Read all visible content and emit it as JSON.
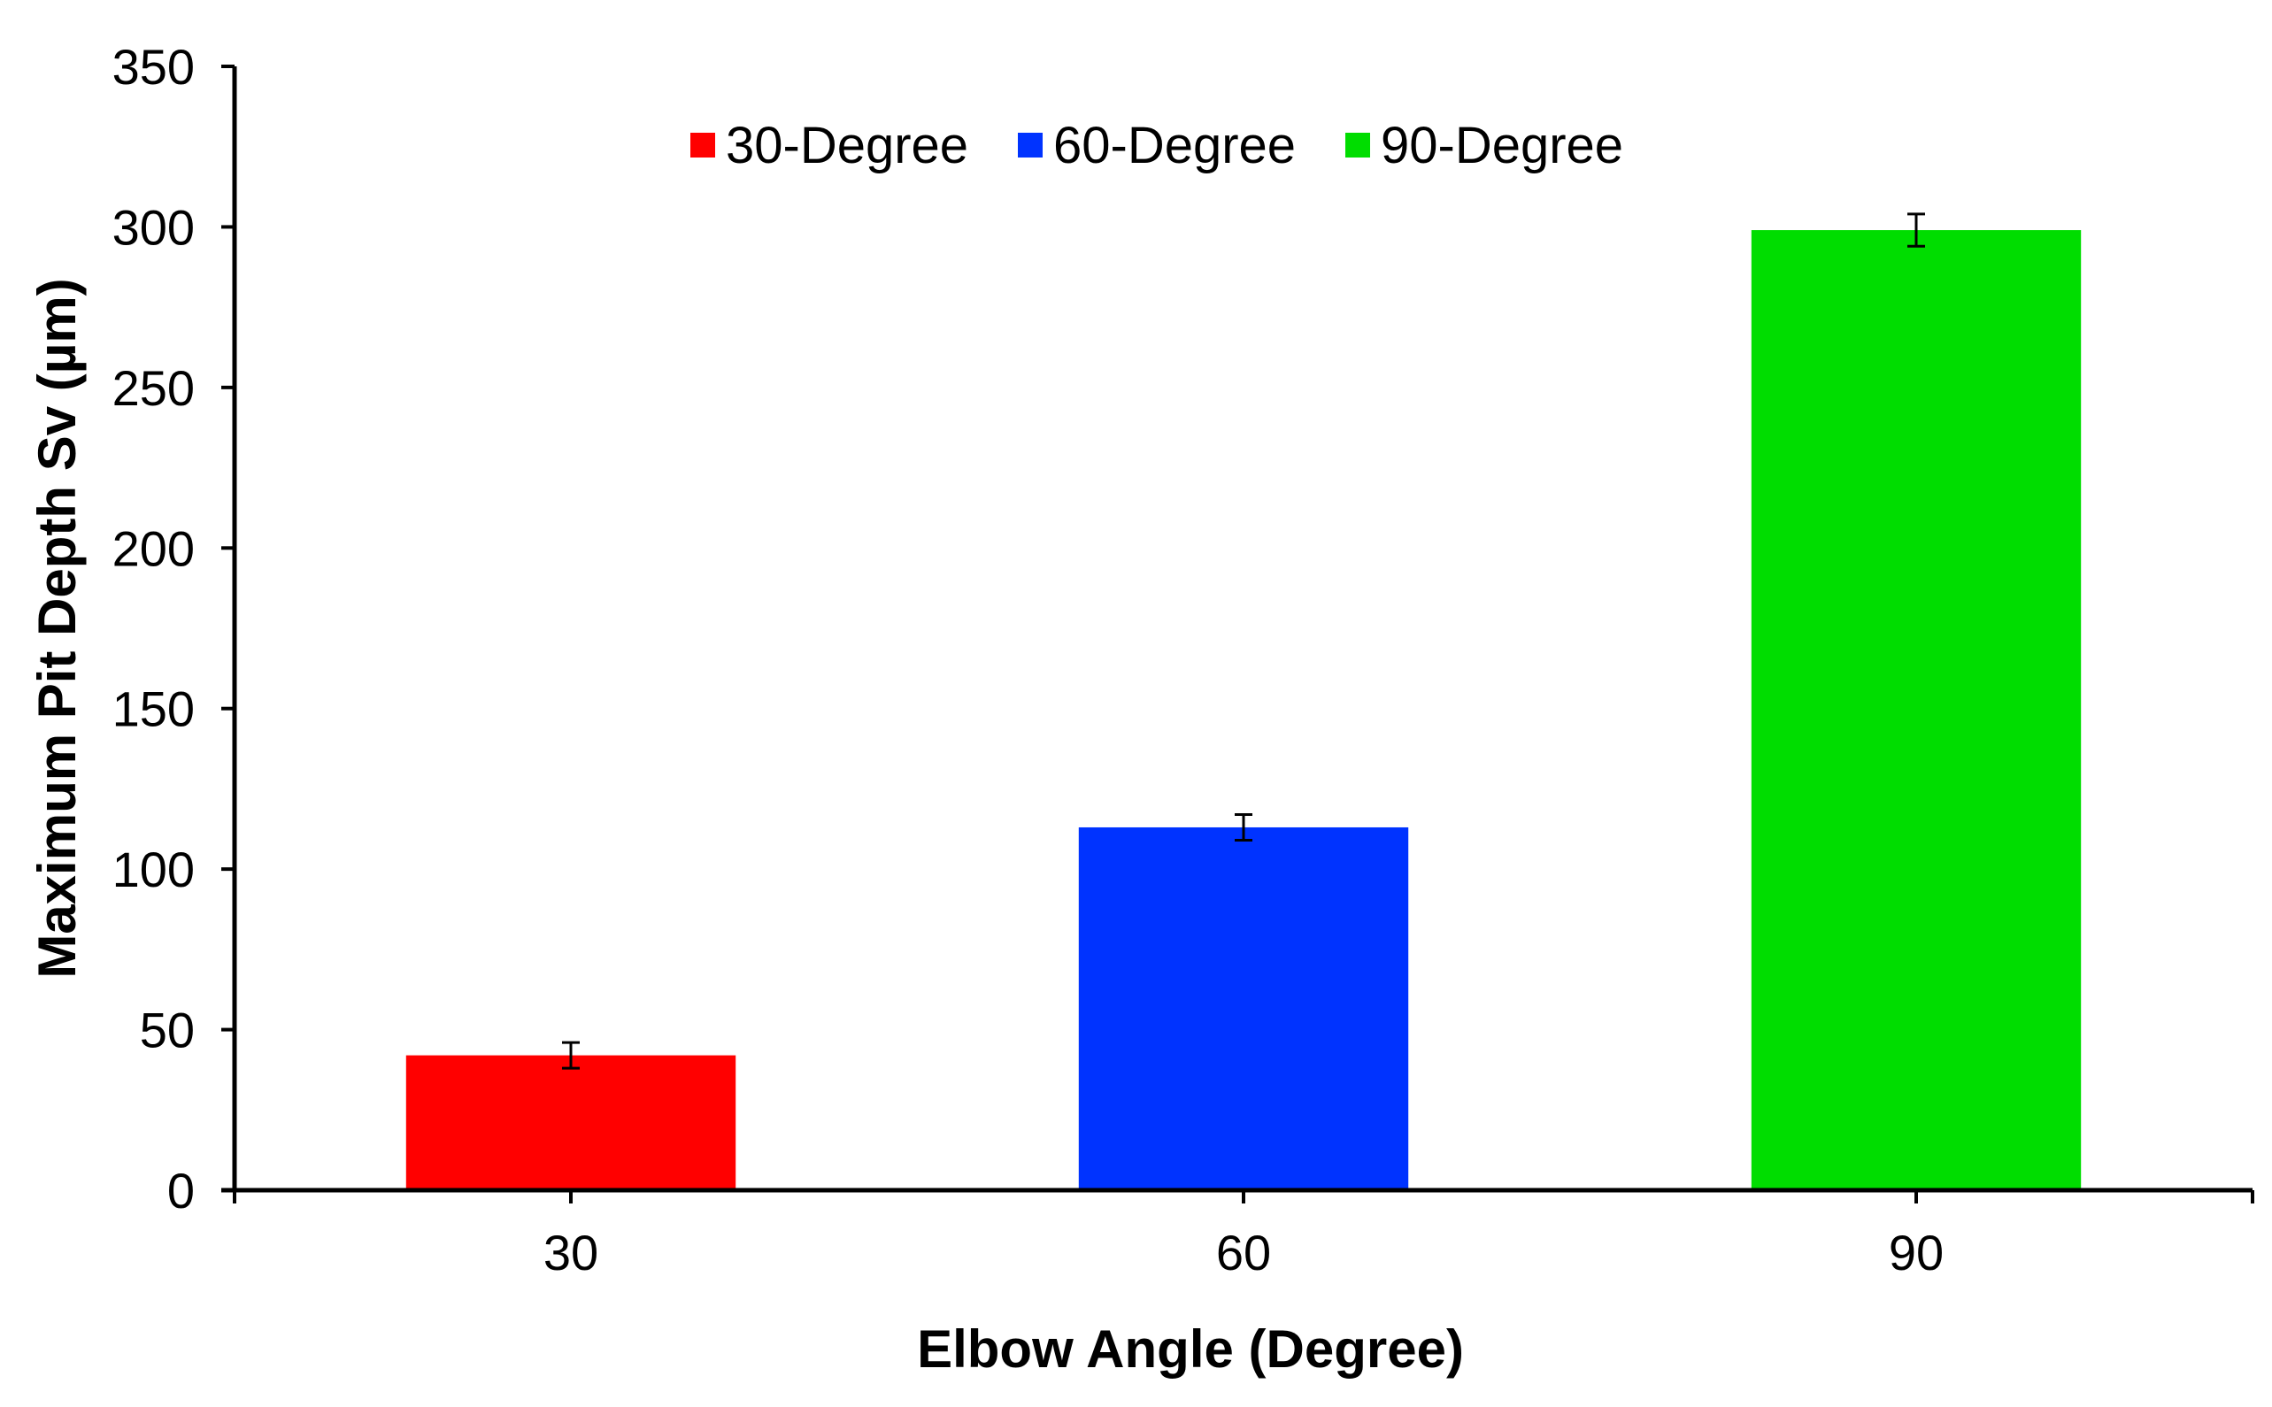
{
  "chart_data": {
    "type": "bar",
    "categories": [
      "30",
      "60",
      "90"
    ],
    "values": [
      42,
      113,
      299
    ],
    "errors": [
      4,
      4,
      5
    ],
    "colors": [
      "#ff0000",
      "#0033ff",
      "#00dd00"
    ],
    "legend": [
      "30-Degree",
      "60-Degree",
      "90-Degree"
    ],
    "legend_position": "top-center",
    "xlabel": "Elbow Angle (Degree)",
    "ylabel": "Maximum Pit Depth Sv (µm)",
    "ylim": [
      0,
      350
    ],
    "yticks": [
      0,
      50,
      100,
      150,
      200,
      250,
      300,
      350
    ],
    "grid": false
  }
}
